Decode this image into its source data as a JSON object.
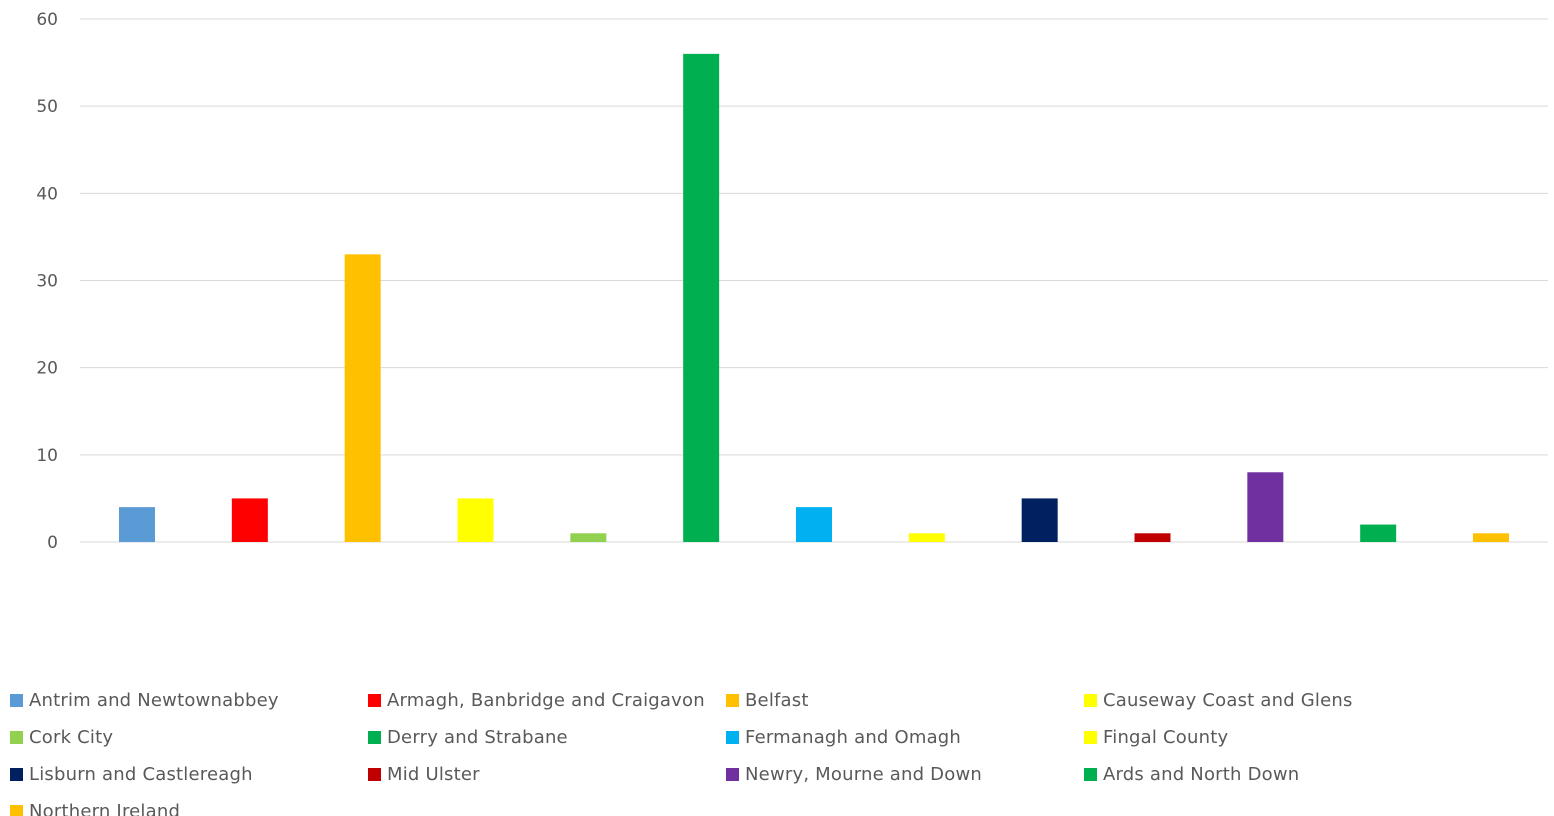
{
  "chart_data": {
    "type": "bar",
    "title": "",
    "xlabel": "",
    "ylabel": "",
    "ylim": [
      0,
      60
    ],
    "yticks": [
      "0",
      "10",
      "20",
      "30",
      "40",
      "50",
      "60"
    ],
    "grid": true,
    "legend_position": "bottom",
    "categories": [
      "Antrim and Newtownabbey",
      "Armagh, Banbridge and Craigavon",
      "Belfast",
      "Causeway Coast and Glens",
      "Cork City",
      "Derry and Strabane",
      "Fermanagh and Omagh",
      "Fingal County",
      "Lisburn and Castlereagh",
      "Mid Ulster",
      "Newry, Mourne and Down",
      "Ards and North Down",
      "Northern Ireland"
    ],
    "values": [
      4,
      5,
      33,
      5,
      1,
      56,
      4,
      1,
      5,
      1,
      8,
      2,
      1
    ],
    "colors": [
      "#5b9bd5",
      "#ff0000",
      "#ffc000",
      "#ffff00",
      "#92d050",
      "#00b050",
      "#00b0f0",
      "#ffff00",
      "#002060",
      "#c00000",
      "#7030a0",
      "#00b050",
      "#ffc000"
    ]
  }
}
